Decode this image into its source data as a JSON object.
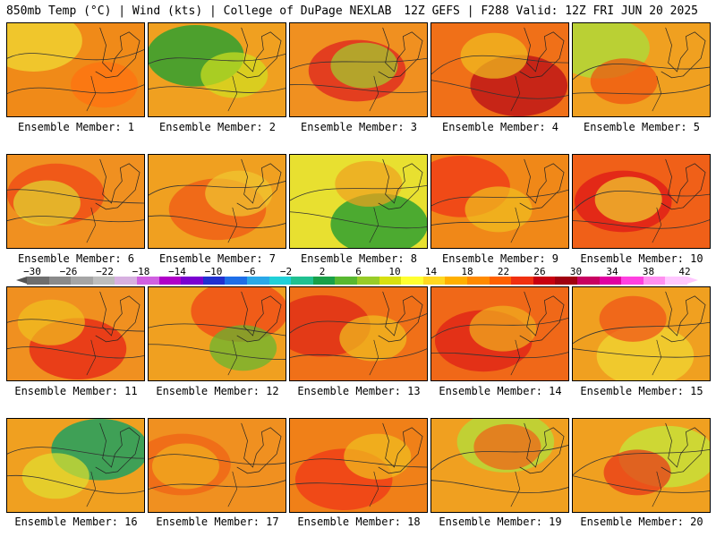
{
  "header": {
    "left": "850mb Temp (°C) | Wind (kts) | College of DuPage NEXLAB",
    "right": "12Z GEFS | F288 Valid: 12Z FRI JUN 20 2025"
  },
  "colorbar": {
    "labels": [
      "−30",
      "−26",
      "−22",
      "−18",
      "−14",
      "−10",
      "−6",
      "−2",
      "2",
      "6",
      "10",
      "14",
      "18",
      "22",
      "26",
      "30",
      "34",
      "38",
      "42"
    ],
    "colors": [
      "#6e6e6e",
      "#8a8a8a",
      "#a5a5a5",
      "#bdbdbd",
      "#d7b0e0",
      "#d060e0",
      "#b000c8",
      "#7a00d0",
      "#2030d0",
      "#1e6ee8",
      "#2aa8e8",
      "#20d0d8",
      "#20c090",
      "#18a048",
      "#58b830",
      "#98cc28",
      "#d8e010",
      "#ffff30",
      "#ffd820",
      "#ffb000",
      "#ff8a00",
      "#ff6000",
      "#f03010",
      "#c80010",
      "#a00010",
      "#c80060",
      "#e000a0",
      "#ff40e0",
      "#ff90f0",
      "#ffc8ff"
    ]
  },
  "members": [
    {
      "label": "Ensemble Member: 1",
      "base": "#f08a18",
      "blob": "#f0d030",
      "blob2": "#ff7010"
    },
    {
      "label": "Ensemble Member: 2",
      "base": "#f0a020",
      "blob": "#30a030",
      "blob2": "#d0e020"
    },
    {
      "label": "Ensemble Member: 3",
      "base": "#f09020",
      "blob": "#e03020",
      "blob2": "#a0d030"
    },
    {
      "label": "Ensemble Member: 4",
      "base": "#f07018",
      "blob": "#c01818",
      "blob2": "#f0c020"
    },
    {
      "label": "Ensemble Member: 5",
      "base": "#f0a020",
      "blob": "#b0d838",
      "blob2": "#f05010"
    },
    {
      "label": "Ensemble Member: 6",
      "base": "#f09020",
      "blob": "#f05018",
      "blob2": "#e0d830"
    },
    {
      "label": "Ensemble Member: 7",
      "base": "#f0a020",
      "blob": "#f06018",
      "blob2": "#f0c830"
    },
    {
      "label": "Ensemble Member: 8",
      "base": "#e8e030",
      "blob": "#30a030",
      "blob2": "#f0a020"
    },
    {
      "label": "Ensemble Member: 9",
      "base": "#f08818",
      "blob": "#f04018",
      "blob2": "#f0c020"
    },
    {
      "label": "Ensemble Member: 10",
      "base": "#f06018",
      "blob": "#e02018",
      "blob2": "#f0d030"
    },
    {
      "label": "Ensemble Member: 11",
      "base": "#f09020",
      "blob": "#e83018",
      "blob2": "#f0c020"
    },
    {
      "label": "Ensemble Member: 12",
      "base": "#f0a020",
      "blob": "#f05018",
      "blob2": "#60b830"
    },
    {
      "label": "Ensemble Member: 13",
      "base": "#f07018",
      "blob": "#e03018",
      "blob2": "#f0c020"
    },
    {
      "label": "Ensemble Member: 14",
      "base": "#f06818",
      "blob": "#e02818",
      "blob2": "#f0b020"
    },
    {
      "label": "Ensemble Member: 15",
      "base": "#f0a020",
      "blob": "#f0d030",
      "blob2": "#f05018"
    },
    {
      "label": "Ensemble Member: 16",
      "base": "#f0a020",
      "blob": "#20a060",
      "blob2": "#e0e030"
    },
    {
      "label": "Ensemble Member: 17",
      "base": "#f09020",
      "blob": "#f06818",
      "blob2": "#f0b020"
    },
    {
      "label": "Ensemble Member: 18",
      "base": "#f08018",
      "blob": "#f04018",
      "blob2": "#f0c020"
    },
    {
      "label": "Ensemble Member: 19",
      "base": "#f0a020",
      "blob": "#b8d838",
      "blob2": "#f06018"
    },
    {
      "label": "Ensemble Member: 20",
      "base": "#f0a020",
      "blob": "#c8e038",
      "blob2": "#e83018"
    }
  ]
}
